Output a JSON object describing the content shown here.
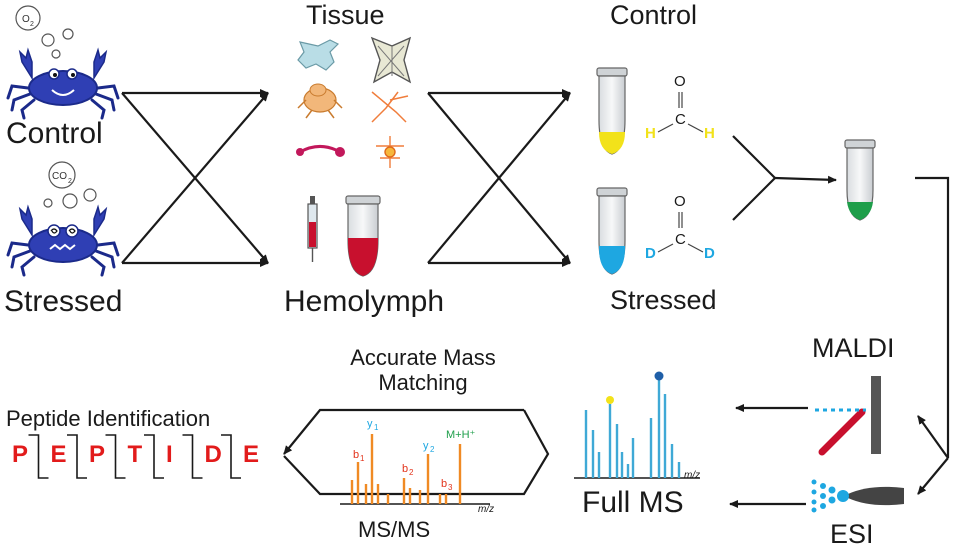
{
  "conditions": {
    "control": "Control",
    "stressed": "Stressed",
    "o2": "O",
    "o2_sub": "2",
    "co2": "CO",
    "co2_sub": "2"
  },
  "samples": {
    "tissue": "Tissue",
    "hemolymph": "Hemolymph"
  },
  "labeling": {
    "control": "Control",
    "stressed": "Stressed",
    "control_formula": {
      "o": "O",
      "c": "C",
      "h_left": "H",
      "h_right": "H"
    },
    "stressed_formula": {
      "o": "O",
      "c": "C",
      "d_left": "D",
      "d_right": "D"
    }
  },
  "ionization": {
    "maldi": "MALDI",
    "esi": "ESI"
  },
  "full_ms": {
    "title": "Full MS",
    "axis": "m/z"
  },
  "msms": {
    "title": "MS/MS",
    "axis": "m/z",
    "labels": {
      "b1": "b",
      "b1_sub": "1",
      "y1": "y",
      "y1_sub": "1",
      "b2": "b",
      "b2_sub": "2",
      "y2": "y",
      "y2_sub": "2",
      "b3": "b",
      "b3_sub": "3",
      "mh": "M+H⁺"
    }
  },
  "matching": {
    "line1": "Accurate Mass",
    "line2": "Matching"
  },
  "identification": {
    "title": "Peptide Identification",
    "letters": [
      "P",
      "E",
      "P",
      "T",
      "I",
      "D",
      "E"
    ]
  },
  "colors": {
    "crab": "#2f3fb4",
    "control_label": "#f2e21a",
    "stressed_label": "#1ea7e1",
    "mixed": "#1e9e4a",
    "blood": "#c8102e",
    "peak_blue": "#3fa9d6",
    "peak_orange": "#f08a24",
    "peptide": "#e21b1b"
  }
}
